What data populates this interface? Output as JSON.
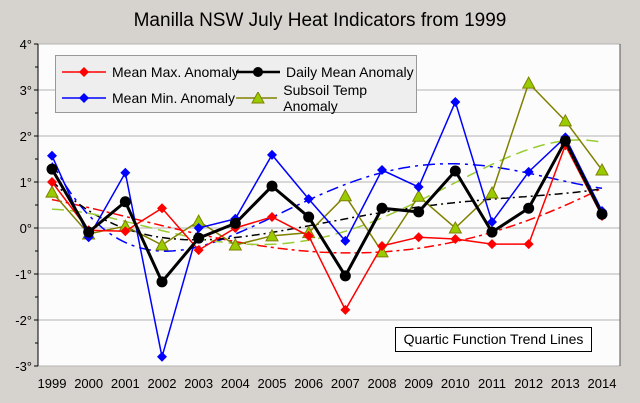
{
  "chart_data": {
    "type": "line",
    "title": "Manilla NSW July Heat Indicators from 1999",
    "x": [
      1999,
      2000,
      2001,
      2002,
      2003,
      2004,
      2005,
      2006,
      2007,
      2008,
      2009,
      2010,
      2011,
      2012,
      2013,
      2014
    ],
    "ylim": [
      -3,
      4
    ],
    "yticks": [
      "4°",
      "3°",
      "2°",
      "1°",
      "0°",
      "-1°",
      "-2°",
      "-3°"
    ],
    "ytick_values": [
      4,
      3,
      2,
      1,
      0,
      -1,
      -2,
      -3
    ],
    "grid": true,
    "legend": "top-left",
    "annotation": "Quartic Function Trend Lines",
    "trend": "quartic",
    "series": [
      {
        "name": "Mean Max. Anomaly",
        "color": "#ff0000",
        "trend_color": "#ff0000",
        "marker": "diamond",
        "values": [
          1.0,
          -0.05,
          -0.07,
          0.43,
          -0.48,
          0.0,
          0.24,
          -0.17,
          -1.78,
          -0.39,
          -0.2,
          -0.24,
          -0.35,
          -0.35,
          1.8,
          0.26
        ]
      },
      {
        "name": "Mean Min. Anomaly",
        "color": "#0000ff",
        "trend_color": "#0000ff",
        "marker": "diamond",
        "values": [
          1.57,
          -0.2,
          1.2,
          -2.8,
          0.0,
          0.2,
          1.59,
          0.63,
          -0.28,
          1.26,
          0.89,
          2.74,
          0.13,
          1.22,
          1.97,
          0.37
        ]
      },
      {
        "name": "Daily Mean Anomaly",
        "color": "#000000",
        "trend_color": "#000000",
        "marker": "circle",
        "values": [
          1.28,
          -0.09,
          0.57,
          -1.17,
          -0.22,
          0.1,
          0.91,
          0.24,
          -1.04,
          0.43,
          0.35,
          1.24,
          -0.09,
          0.43,
          1.89,
          0.3
        ]
      },
      {
        "name": "Subsoil Temp Anomaly",
        "color": "#808000",
        "trend_color": "#99cc33",
        "marker": "triangle",
        "values": [
          0.78,
          -0.13,
          0.04,
          -0.37,
          0.15,
          -0.37,
          -0.17,
          -0.1,
          0.7,
          -0.52,
          0.69,
          0.0,
          0.76,
          3.15,
          2.33,
          1.26
        ]
      }
    ]
  }
}
